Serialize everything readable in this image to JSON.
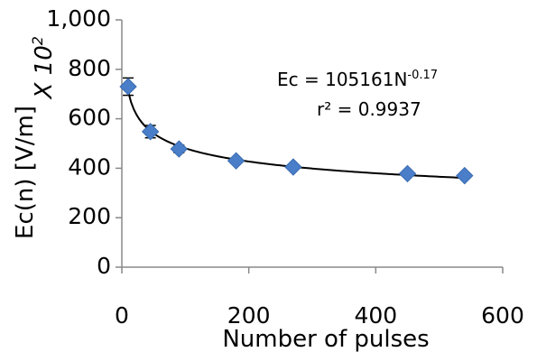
{
  "chart_data": {
    "type": "scatter",
    "xlabel": "Number of pulses",
    "ylabel": "Ec(n) [V/m]",
    "y_multiplier_label": "X 10",
    "y_multiplier_exponent": "2",
    "xlim": [
      0,
      600
    ],
    "ylim": [
      0,
      1000
    ],
    "x_ticks": [
      0,
      200,
      400,
      600
    ],
    "x_tick_labels": [
      "0",
      "200",
      "400",
      "600"
    ],
    "y_ticks": [
      0,
      200,
      400,
      600,
      800,
      1000
    ],
    "y_tick_labels": [
      "0",
      "200",
      "400",
      "600",
      "800",
      "1,000"
    ],
    "grid": false,
    "marker_color": "#4a7ec9",
    "trend_color": "#000000",
    "points": [
      {
        "x": 10,
        "y": 730,
        "err": 35
      },
      {
        "x": 45,
        "y": 548,
        "err": 25
      },
      {
        "x": 90,
        "y": 478,
        "err": 15
      },
      {
        "x": 180,
        "y": 430,
        "err": 10
      },
      {
        "x": 270,
        "y": 405,
        "err": 8
      },
      {
        "x": 450,
        "y": 378,
        "err": 8
      },
      {
        "x": 540,
        "y": 370,
        "err": 8
      }
    ],
    "trendline": {
      "type": "power",
      "coefficient": 105161,
      "exponent": -0.17,
      "x_start": 10,
      "x_end": 540,
      "equation_prefix": "Ec = 105161N",
      "equation_exponent": "-0.17",
      "r2_text": "r² = 0.9937"
    }
  }
}
